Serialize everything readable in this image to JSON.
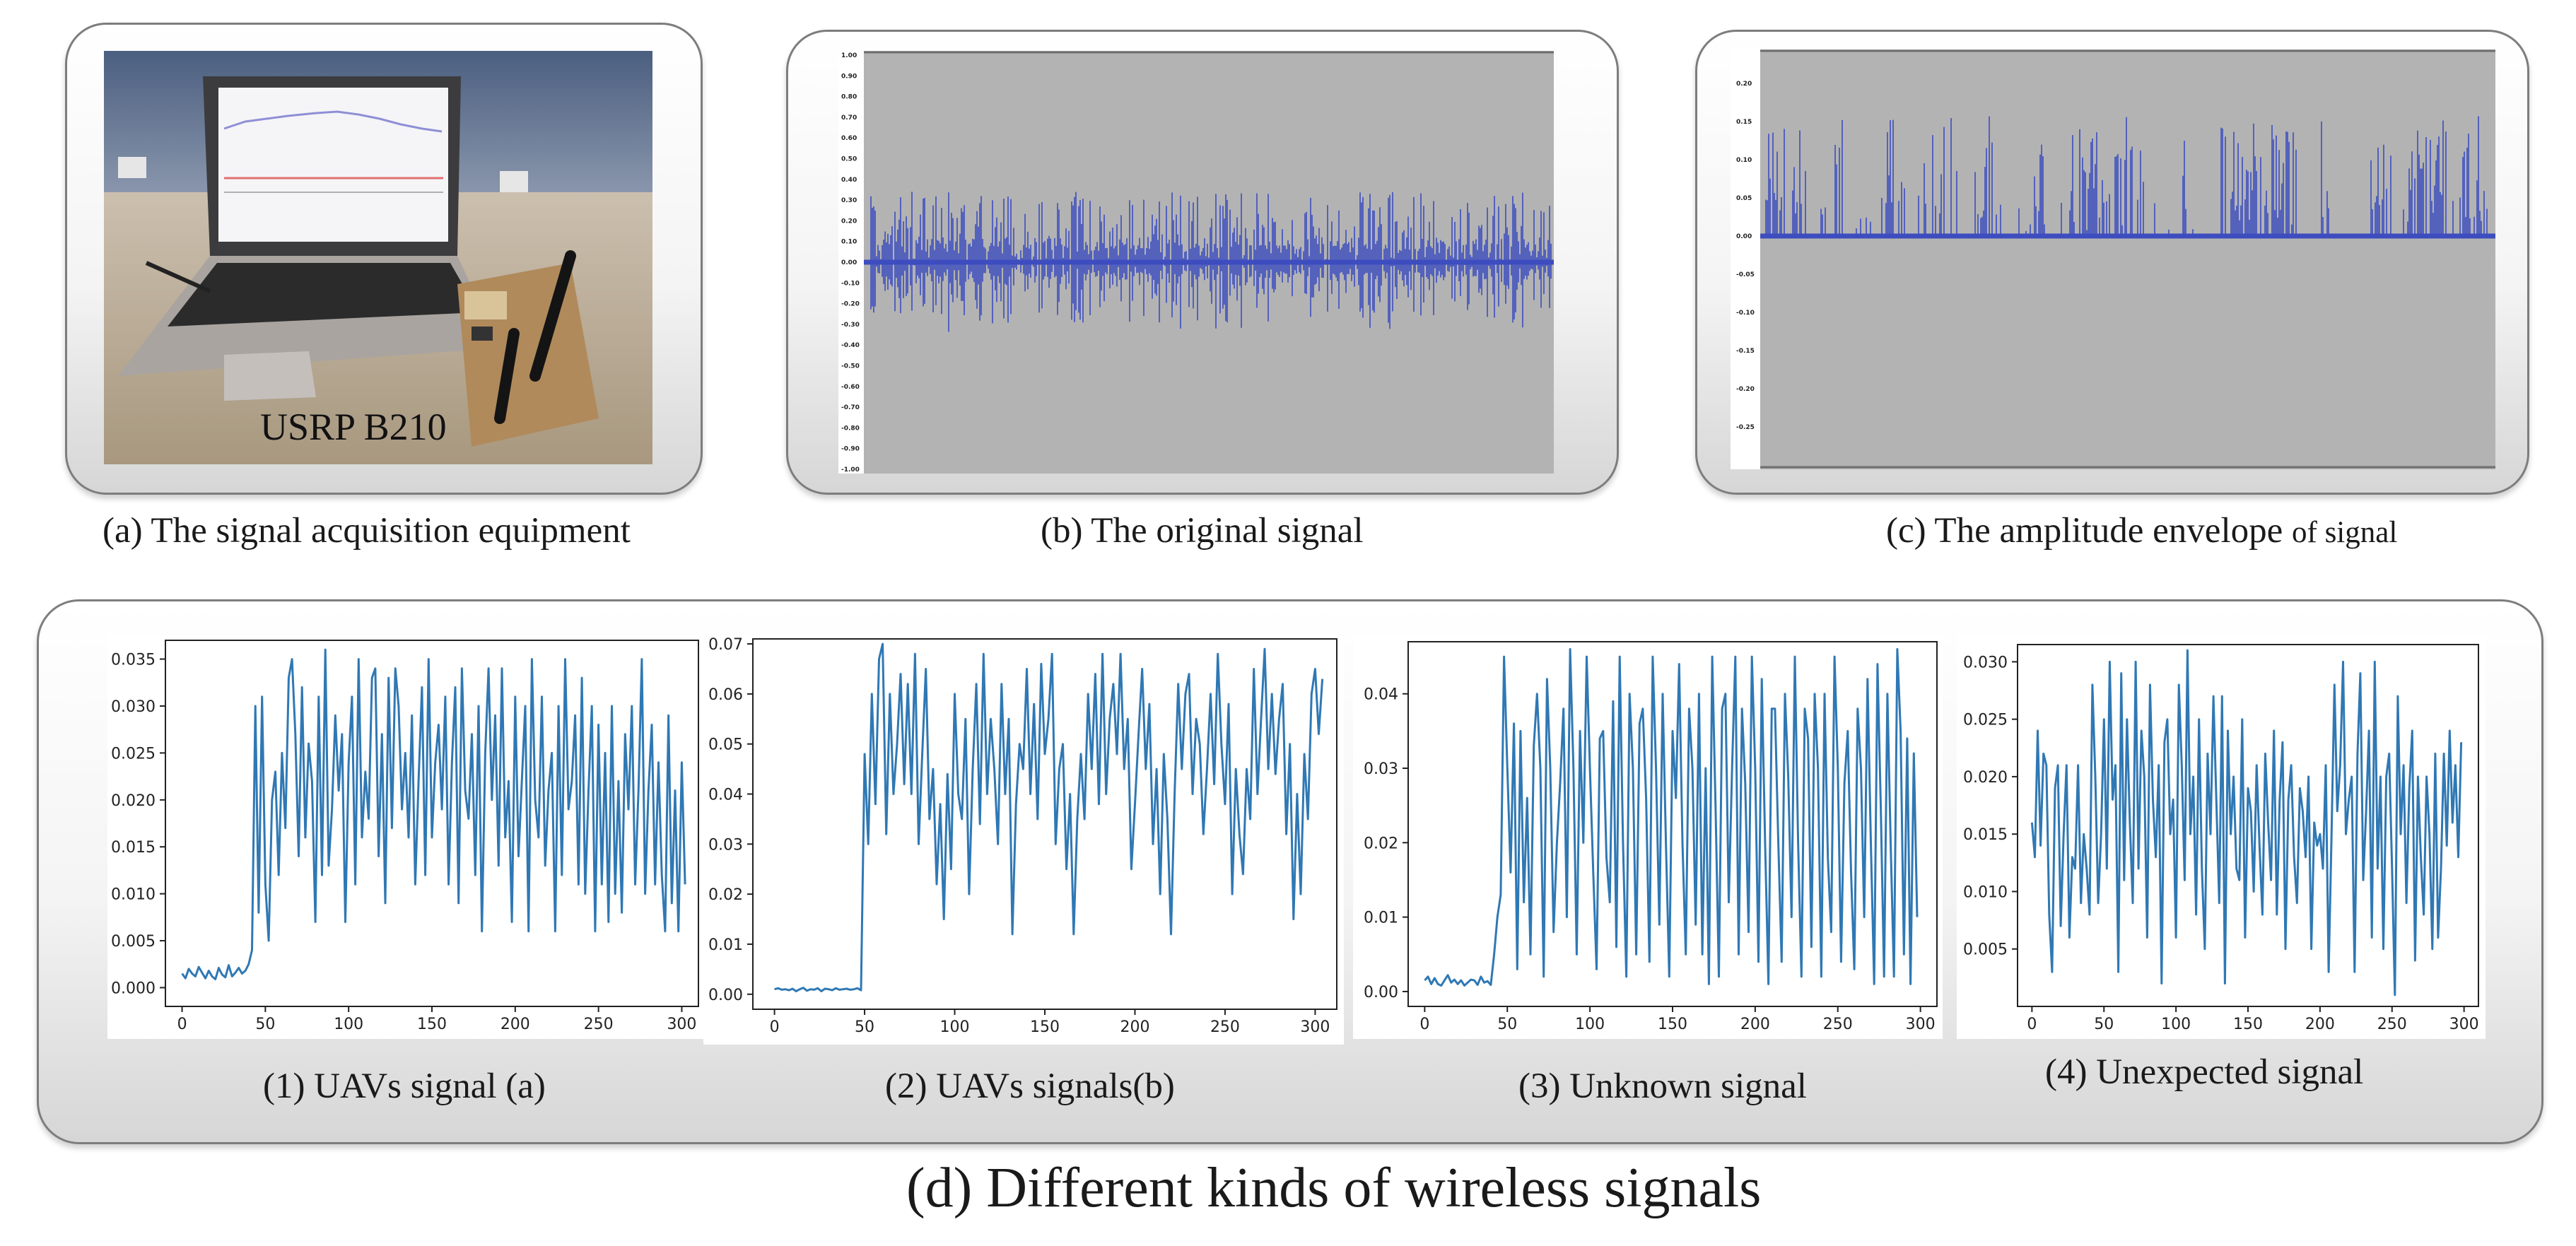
{
  "panel_a": {
    "photo_label": "USRP B210",
    "caption": "(a) The signal acquisition equipment"
  },
  "panel_b": {
    "caption": "(b) The original signal",
    "y_ticks": [
      "1.00",
      "0.90",
      "0.80",
      "0.70",
      "0.60",
      "0.50",
      "0.40",
      "0.30",
      "0.20",
      "0.10",
      "0.00",
      "-0.10",
      "-0.20",
      "-0.30",
      "-0.40",
      "-0.50",
      "-0.60",
      "-0.70",
      "-0.80",
      "-0.90",
      "-1.00"
    ]
  },
  "panel_c": {
    "caption_main": "(c) The amplitude envelope",
    "caption_small": "of signal",
    "y_ticks": [
      "0.20",
      "0.15",
      "0.10",
      "0.05",
      "0.00",
      "-0.05",
      "-0.10",
      "-0.15",
      "-0.20",
      "-0.25"
    ]
  },
  "colors": {
    "waveform": "#3d4dbf",
    "line": "#2f78b4",
    "plot_bg": "#b3b3b3"
  },
  "chart_data": [
    {
      "type": "line",
      "title": "(1) UAVs signal (a)",
      "x_ticks": [
        "0",
        "50",
        "100",
        "150",
        "200",
        "250",
        "300"
      ],
      "y_ticks": [
        "0.000",
        "0.005",
        "0.010",
        "0.015",
        "0.020",
        "0.025",
        "0.030",
        "0.035"
      ],
      "xlim": [
        -10,
        310
      ],
      "ylim": [
        -0.002,
        0.037
      ],
      "x_start": 0,
      "x_step": 2,
      "values": [
        0.0015,
        0.001,
        0.002,
        0.0015,
        0.0012,
        0.0022,
        0.0016,
        0.001,
        0.0018,
        0.0012,
        0.0009,
        0.0021,
        0.0014,
        0.0011,
        0.0024,
        0.0012,
        0.0016,
        0.0021,
        0.0015,
        0.0018,
        0.0025,
        0.004,
        0.03,
        0.008,
        0.031,
        0.011,
        0.005,
        0.02,
        0.023,
        0.012,
        0.025,
        0.017,
        0.033,
        0.035,
        0.027,
        0.014,
        0.032,
        0.016,
        0.026,
        0.022,
        0.007,
        0.031,
        0.012,
        0.036,
        0.013,
        0.019,
        0.029,
        0.021,
        0.027,
        0.007,
        0.024,
        0.031,
        0.011,
        0.035,
        0.016,
        0.023,
        0.018,
        0.033,
        0.034,
        0.014,
        0.027,
        0.009,
        0.033,
        0.017,
        0.034,
        0.03,
        0.019,
        0.025,
        0.016,
        0.029,
        0.011,
        0.022,
        0.032,
        0.012,
        0.035,
        0.016,
        0.024,
        0.028,
        0.019,
        0.031,
        0.011,
        0.024,
        0.032,
        0.009,
        0.034,
        0.021,
        0.018,
        0.027,
        0.012,
        0.03,
        0.006,
        0.025,
        0.034,
        0.02,
        0.029,
        0.013,
        0.034,
        0.016,
        0.022,
        0.007,
        0.031,
        0.014,
        0.022,
        0.03,
        0.006,
        0.035,
        0.02,
        0.016,
        0.031,
        0.013,
        0.021,
        0.025,
        0.006,
        0.03,
        0.012,
        0.035,
        0.019,
        0.022,
        0.029,
        0.011,
        0.033,
        0.01,
        0.021,
        0.03,
        0.006,
        0.028,
        0.011,
        0.025,
        0.007,
        0.03,
        0.01,
        0.022,
        0.008,
        0.027,
        0.019,
        0.03,
        0.011,
        0.021,
        0.035,
        0.01,
        0.021,
        0.028,
        0.011,
        0.024,
        0.012,
        0.006,
        0.029,
        0.009,
        0.021,
        0.006,
        0.024,
        0.011
      ]
    },
    {
      "type": "line",
      "title": "(2) UAVs  signals(b)",
      "x_ticks": [
        "0",
        "50",
        "100",
        "150",
        "200",
        "250",
        "300"
      ],
      "y_ticks": [
        "0.00",
        "0.01",
        "0.02",
        "0.03",
        "0.04",
        "0.05",
        "0.06",
        "0.07"
      ],
      "xlim": [
        -12,
        312
      ],
      "ylim": [
        -0.003,
        0.071
      ],
      "x_start": 0,
      "x_step": 2,
      "values": [
        0.001,
        0.0012,
        0.0009,
        0.001,
        0.0008,
        0.0011,
        0.0006,
        0.001,
        0.0013,
        0.0007,
        0.001,
        0.0009,
        0.0012,
        0.0006,
        0.0011,
        0.001,
        0.0008,
        0.0012,
        0.0009,
        0.001,
        0.0011,
        0.0009,
        0.001,
        0.0012,
        0.0008,
        0.048,
        0.03,
        0.06,
        0.038,
        0.067,
        0.07,
        0.032,
        0.06,
        0.04,
        0.05,
        0.064,
        0.042,
        0.062,
        0.04,
        0.068,
        0.03,
        0.048,
        0.065,
        0.035,
        0.045,
        0.022,
        0.038,
        0.015,
        0.044,
        0.025,
        0.06,
        0.04,
        0.035,
        0.055,
        0.02,
        0.045,
        0.062,
        0.034,
        0.068,
        0.04,
        0.055,
        0.045,
        0.03,
        0.062,
        0.04,
        0.055,
        0.012,
        0.038,
        0.05,
        0.045,
        0.065,
        0.04,
        0.058,
        0.035,
        0.066,
        0.048,
        0.055,
        0.068,
        0.03,
        0.045,
        0.05,
        0.025,
        0.04,
        0.012,
        0.035,
        0.048,
        0.035,
        0.06,
        0.045,
        0.064,
        0.038,
        0.068,
        0.04,
        0.055,
        0.062,
        0.048,
        0.068,
        0.045,
        0.055,
        0.025,
        0.038,
        0.052,
        0.065,
        0.045,
        0.058,
        0.03,
        0.045,
        0.02,
        0.048,
        0.035,
        0.012,
        0.04,
        0.062,
        0.045,
        0.06,
        0.064,
        0.04,
        0.055,
        0.05,
        0.032,
        0.045,
        0.06,
        0.042,
        0.068,
        0.05,
        0.038,
        0.058,
        0.02,
        0.045,
        0.032,
        0.024,
        0.045,
        0.035,
        0.065,
        0.04,
        0.055,
        0.069,
        0.045,
        0.06,
        0.044,
        0.055,
        0.062,
        0.032,
        0.05,
        0.015,
        0.04,
        0.02,
        0.048,
        0.035,
        0.06,
        0.065,
        0.052,
        0.063
      ]
    },
    {
      "type": "line",
      "title": "(3) Unknown signal",
      "x_ticks": [
        "0",
        "50",
        "100",
        "150",
        "200",
        "250",
        "300"
      ],
      "y_ticks": [
        "0.00",
        "0.01",
        "0.02",
        "0.03",
        "0.04"
      ],
      "xlim": [
        -10,
        310
      ],
      "ylim": [
        -0.002,
        0.047
      ],
      "x_start": 0,
      "x_step": 2,
      "values": [
        0.0015,
        0.002,
        0.001,
        0.0018,
        0.001,
        0.0008,
        0.0015,
        0.0022,
        0.0012,
        0.0016,
        0.001,
        0.0015,
        0.0008,
        0.0012,
        0.0016,
        0.0015,
        0.0009,
        0.002,
        0.0012,
        0.0014,
        0.0009,
        0.005,
        0.01,
        0.013,
        0.045,
        0.03,
        0.016,
        0.036,
        0.003,
        0.035,
        0.012,
        0.026,
        0.005,
        0.033,
        0.04,
        0.03,
        0.002,
        0.042,
        0.03,
        0.008,
        0.02,
        0.028,
        0.038,
        0.01,
        0.046,
        0.03,
        0.005,
        0.035,
        0.02,
        0.045,
        0.03,
        0.016,
        0.003,
        0.034,
        0.035,
        0.018,
        0.012,
        0.039,
        0.006,
        0.045,
        0.02,
        0.002,
        0.04,
        0.03,
        0.005,
        0.036,
        0.038,
        0.026,
        0.004,
        0.045,
        0.03,
        0.009,
        0.04,
        0.02,
        0.002,
        0.035,
        0.026,
        0.044,
        0.02,
        0.005,
        0.038,
        0.03,
        0.009,
        0.04,
        0.005,
        0.03,
        0.001,
        0.045,
        0.025,
        0.002,
        0.038,
        0.04,
        0.012,
        0.03,
        0.045,
        0.005,
        0.038,
        0.028,
        0.008,
        0.045,
        0.03,
        0.004,
        0.042,
        0.02,
        0.001,
        0.038,
        0.038,
        0.02,
        0.004,
        0.04,
        0.029,
        0.01,
        0.045,
        0.02,
        0.002,
        0.038,
        0.034,
        0.006,
        0.04,
        0.03,
        0.002,
        0.04,
        0.018,
        0.008,
        0.045,
        0.03,
        0.004,
        0.028,
        0.035,
        0.016,
        0.003,
        0.038,
        0.03,
        0.01,
        0.042,
        0.02,
        0.001,
        0.044,
        0.025,
        0.002,
        0.04,
        0.02,
        0.002,
        0.046,
        0.035,
        0.005,
        0.034,
        0.001,
        0.032,
        0.01
      ]
    },
    {
      "type": "line",
      "title": "(4) Unexpected signal",
      "x_ticks": [
        "0",
        "50",
        "100",
        "150",
        "200",
        "250",
        "300"
      ],
      "y_ticks": [
        "0.005",
        "0.010",
        "0.015",
        "0.020",
        "0.025",
        "0.030"
      ],
      "xlim": [
        -10,
        310
      ],
      "ylim": [
        0.0,
        0.0315
      ],
      "x_start": 0,
      "x_step": 2,
      "values": [
        0.016,
        0.013,
        0.024,
        0.014,
        0.022,
        0.021,
        0.008,
        0.003,
        0.019,
        0.021,
        0.007,
        0.015,
        0.021,
        0.006,
        0.013,
        0.012,
        0.021,
        0.009,
        0.015,
        0.012,
        0.008,
        0.028,
        0.02,
        0.009,
        0.015,
        0.025,
        0.012,
        0.03,
        0.018,
        0.021,
        0.003,
        0.029,
        0.011,
        0.025,
        0.016,
        0.009,
        0.03,
        0.012,
        0.024,
        0.02,
        0.006,
        0.028,
        0.018,
        0.013,
        0.021,
        0.002,
        0.023,
        0.025,
        0.015,
        0.018,
        0.006,
        0.028,
        0.021,
        0.011,
        0.031,
        0.015,
        0.02,
        0.008,
        0.025,
        0.012,
        0.005,
        0.022,
        0.015,
        0.027,
        0.018,
        0.009,
        0.027,
        0.002,
        0.024,
        0.015,
        0.02,
        0.012,
        0.011,
        0.025,
        0.006,
        0.019,
        0.017,
        0.01,
        0.021,
        0.014,
        0.008,
        0.022,
        0.016,
        0.011,
        0.024,
        0.008,
        0.018,
        0.023,
        0.005,
        0.018,
        0.021,
        0.013,
        0.009,
        0.019,
        0.017,
        0.013,
        0.02,
        0.005,
        0.016,
        0.014,
        0.015,
        0.012,
        0.021,
        0.003,
        0.015,
        0.028,
        0.017,
        0.021,
        0.03,
        0.015,
        0.018,
        0.02,
        0.003,
        0.022,
        0.029,
        0.011,
        0.017,
        0.024,
        0.006,
        0.03,
        0.012,
        0.02,
        0.005,
        0.02,
        0.022,
        0.012,
        0.001,
        0.027,
        0.015,
        0.021,
        0.009,
        0.019,
        0.024,
        0.004,
        0.02,
        0.013,
        0.008,
        0.02,
        0.015,
        0.005,
        0.022,
        0.006,
        0.012,
        0.022,
        0.014,
        0.024,
        0.016,
        0.021,
        0.013,
        0.023
      ]
    }
  ],
  "panel_d": {
    "caption": "(d) Different kinds of wireless signals"
  }
}
